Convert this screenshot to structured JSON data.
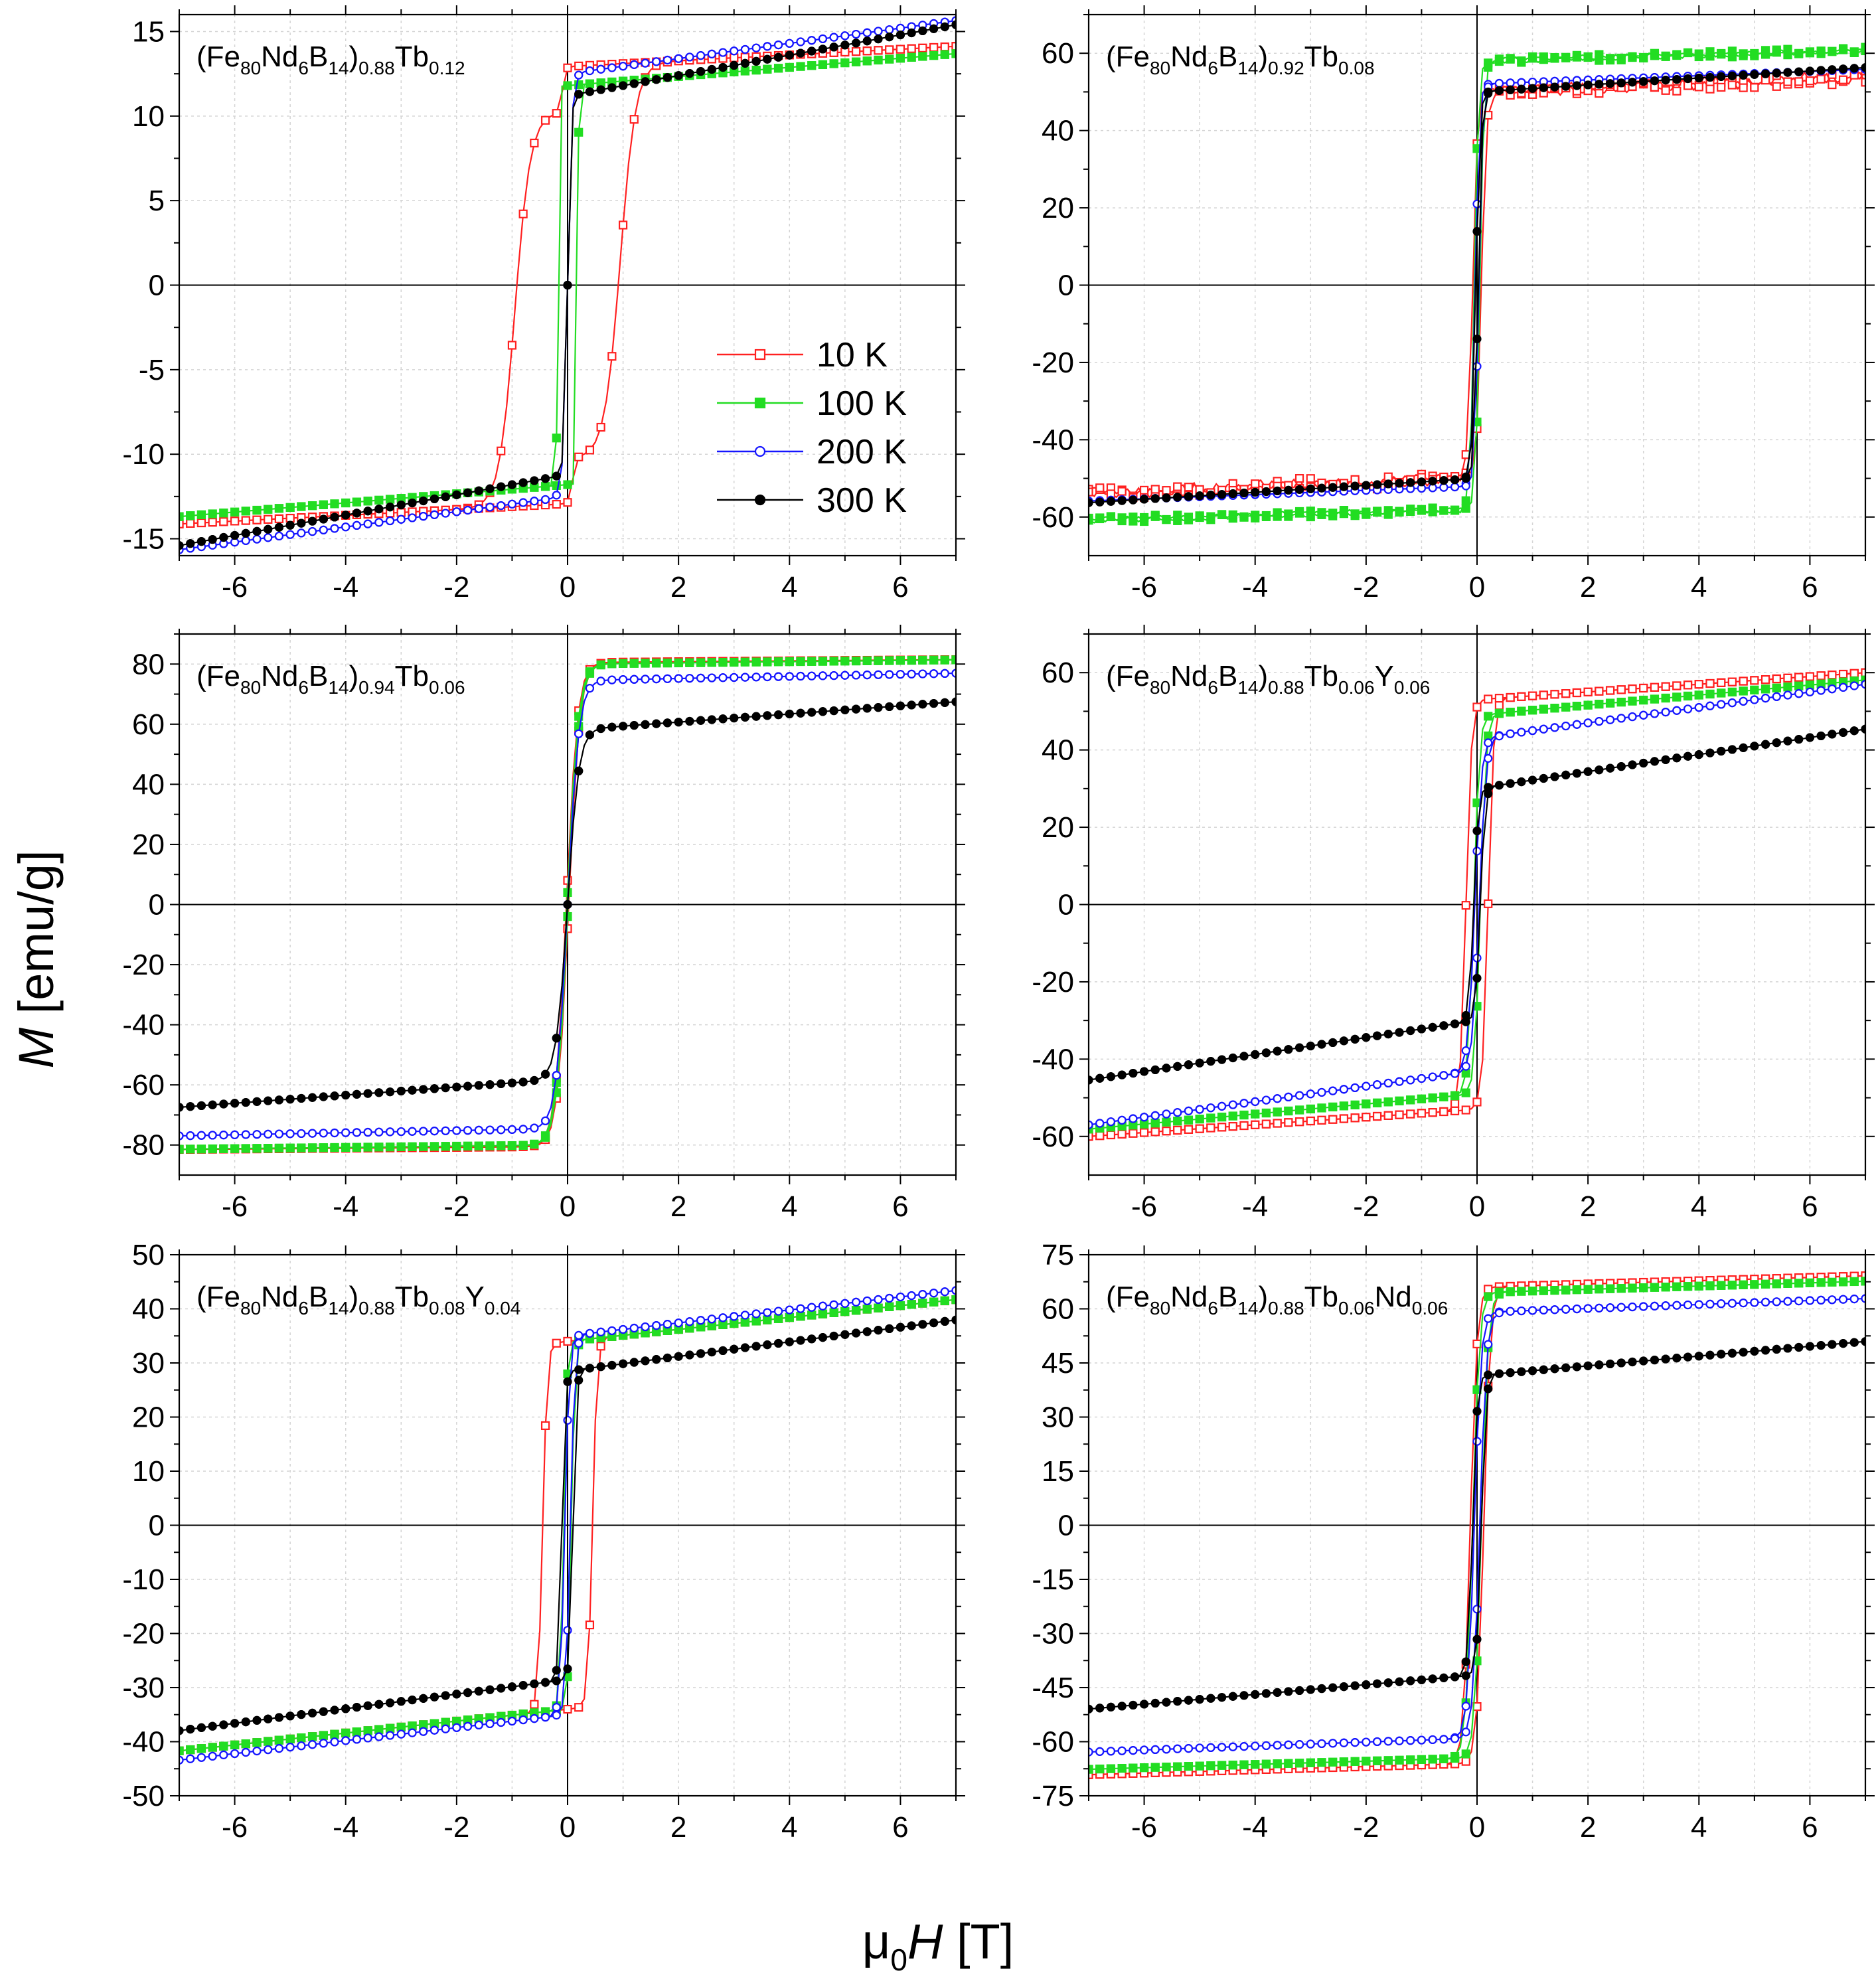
{
  "figure": {
    "ylabel_italic": "M",
    "ylabel_rest": " [emu/g]",
    "xlabel_mu": "μ",
    "xlabel_sub": "0",
    "xlabel_italic": "H",
    "xlabel_rest": " [T]",
    "x_ticks": [
      -6,
      -4,
      -2,
      0,
      2,
      4,
      6
    ]
  },
  "series_styles": [
    {
      "name": "10 K",
      "color": "#ff2020",
      "marker": "open-square"
    },
    {
      "name": "100 K",
      "color": "#22dd22",
      "marker": "filled-square"
    },
    {
      "name": "200 K",
      "color": "#1515ff",
      "marker": "open-circle"
    },
    {
      "name": "300 K",
      "color": "#000000",
      "marker": "filled-circle"
    }
  ],
  "chart_data": [
    {
      "type": "line",
      "title": "(Fe80Nd6B14)0.88Tb0.12",
      "title_parts": [
        [
          "(Fe",
          ""
        ],
        [
          "80",
          "sub"
        ],
        [
          "Nd",
          ""
        ],
        [
          "6",
          "sub"
        ],
        [
          "B",
          ""
        ],
        [
          "14",
          "sub"
        ],
        [
          ")",
          ""
        ],
        [
          "0.88",
          "sub"
        ],
        [
          "Tb",
          ""
        ],
        [
          "0.12",
          "sub"
        ]
      ],
      "xlim": [
        -7,
        7
      ],
      "ylim": [
        -16,
        16
      ],
      "yticks": [
        -15,
        -10,
        -5,
        0,
        5,
        10,
        15
      ],
      "legend": "center-right",
      "series": [
        {
          "name": "10 K",
          "Ms": 11.6,
          "chi": 0.17,
          "Hc": 0.95,
          "w": 0.28,
          "step": 0.23
        },
        {
          "name": "100 K",
          "Ms": 11.8,
          "chi": 0.27,
          "Hc": 0.18,
          "w": 0.02
        },
        {
          "name": "200 K",
          "Ms": 12.5,
          "chi": 0.45,
          "Hc": 0.0,
          "w": 0.08
        },
        {
          "name": "300 K",
          "Ms": 11.2,
          "chi": 0.6,
          "Hc": 0.0,
          "w": 0.06
        }
      ]
    },
    {
      "type": "line",
      "title": "(Fe80Nd6B14)0.92Tb0.08",
      "title_parts": [
        [
          "(Fe",
          ""
        ],
        [
          "80",
          "sub"
        ],
        [
          "Nd",
          ""
        ],
        [
          "6",
          "sub"
        ],
        [
          "B",
          ""
        ],
        [
          "14",
          "sub"
        ],
        [
          ")",
          ""
        ],
        [
          "0.92",
          "sub"
        ],
        [
          "Tb",
          ""
        ],
        [
          "0.08",
          "sub"
        ]
      ],
      "xlim": [
        -7,
        7
      ],
      "ylim": [
        -70,
        70
      ],
      "yticks": [
        -60,
        -40,
        -20,
        0,
        20,
        40,
        60
      ],
      "series": [
        {
          "name": "10 K",
          "Ms": 50,
          "chi": 0.55,
          "Hc": 0.08,
          "w": 0.08,
          "noise": 1.8
        },
        {
          "name": "100 K",
          "Ms": 58,
          "chi": 0.4,
          "Hc": 0.05,
          "w": 0.07,
          "noise": 0.8
        },
        {
          "name": "200 K",
          "Ms": 52,
          "chi": 0.55,
          "Hc": 0.03,
          "w": 0.07
        },
        {
          "name": "300 K",
          "Ms": 50,
          "chi": 0.9,
          "Hc": 0.02,
          "w": 0.07
        }
      ]
    },
    {
      "type": "line",
      "title": "(Fe80Nd6B14)0.94Tb0.06",
      "title_parts": [
        [
          "(Fe",
          ""
        ],
        [
          "80",
          "sub"
        ],
        [
          "Nd",
          ""
        ],
        [
          "6",
          "sub"
        ],
        [
          "B",
          ""
        ],
        [
          "14",
          "sub"
        ],
        [
          ")",
          ""
        ],
        [
          "0.94",
          "sub"
        ],
        [
          "Tb",
          ""
        ],
        [
          "0.06",
          "sub"
        ]
      ],
      "xlim": [
        -7,
        7
      ],
      "ylim": [
        -90,
        90
      ],
      "yticks": [
        -80,
        -60,
        -40,
        -20,
        0,
        20,
        40,
        60,
        80
      ],
      "series": [
        {
          "name": "10 K",
          "Ms": 80.5,
          "chi": 0.14,
          "Hc": 0.02,
          "w": 0.2
        },
        {
          "name": "100 K",
          "Ms": 80,
          "chi": 0.2,
          "Hc": 0.01,
          "w": 0.2
        },
        {
          "name": "200 K",
          "Ms": 74.5,
          "chi": 0.35,
          "Hc": 0.0,
          "w": 0.2
        },
        {
          "name": "300 K",
          "Ms": 58,
          "chi": 1.35,
          "Hc": 0.0,
          "w": 0.2
        }
      ]
    },
    {
      "type": "line",
      "title": "(Fe80Nd6B14)0.88Tb0.06Y0.06",
      "title_parts": [
        [
          "(Fe",
          ""
        ],
        [
          "80",
          "sub"
        ],
        [
          "Nd",
          ""
        ],
        [
          "6",
          "sub"
        ],
        [
          "B",
          ""
        ],
        [
          "14",
          "sub"
        ],
        [
          ")",
          ""
        ],
        [
          "0.88",
          "sub"
        ],
        [
          "Tb",
          ""
        ],
        [
          "0.06",
          "sub"
        ],
        [
          "Y",
          ""
        ],
        [
          "0.06",
          "sub"
        ]
      ],
      "xlim": [
        -7,
        7
      ],
      "ylim": [
        -70,
        70
      ],
      "yticks": [
        -60,
        -40,
        -20,
        0,
        20,
        40,
        60
      ],
      "series": [
        {
          "name": "10 K",
          "Ms": 53,
          "chi": 1.0,
          "Hc": 0.2,
          "w": 0.1
        },
        {
          "name": "100 K",
          "Ms": 49,
          "chi": 1.3,
          "Hc": 0.06,
          "w": 0.1
        },
        {
          "name": "200 K",
          "Ms": 43,
          "chi": 2.0,
          "Hc": 0.04,
          "w": 0.12
        },
        {
          "name": "300 K",
          "Ms": 30,
          "chi": 2.2,
          "Hc": 0.06,
          "w": 0.08
        }
      ]
    },
    {
      "type": "line",
      "title": "(Fe80Nd6B14)0.88Tb0.08Y0.04",
      "title_parts": [
        [
          "(Fe",
          ""
        ],
        [
          "80",
          "sub"
        ],
        [
          "Nd",
          ""
        ],
        [
          "6",
          "sub"
        ],
        [
          "B",
          ""
        ],
        [
          "14",
          "sub"
        ],
        [
          ")",
          ""
        ],
        [
          "0.88",
          "sub"
        ],
        [
          "Tb",
          ""
        ],
        [
          "0.08",
          "sub"
        ],
        [
          "Y",
          ""
        ],
        [
          "0.04",
          "sub"
        ]
      ],
      "xlim": [
        -7,
        7
      ],
      "ylim": [
        -50,
        50
      ],
      "yticks": [
        -50,
        -40,
        -30,
        -20,
        -10,
        0,
        10,
        20,
        30,
        40,
        50
      ],
      "series": [
        {
          "name": "10 K",
          "Ms": 34,
          "chi": 1.1,
          "Hc": 0.45,
          "w": 0.08
        },
        {
          "name": "100 K",
          "Ms": 34,
          "chi": 1.1,
          "Hc": 0.07,
          "w": 0.06
        },
        {
          "name": "200 K",
          "Ms": 35,
          "chi": 1.2,
          "Hc": 0.05,
          "w": 0.08
        },
        {
          "name": "300 K",
          "Ms": 28.5,
          "chi": 1.35,
          "Hc": 0.1,
          "w": 0.06
        }
      ]
    },
    {
      "type": "line",
      "title": "(Fe80Nd6B14)0.88Tb0.06Nd0.06",
      "title_parts": [
        [
          "(Fe",
          ""
        ],
        [
          "80",
          "sub"
        ],
        [
          "Nd",
          ""
        ],
        [
          "6",
          "sub"
        ],
        [
          "B",
          ""
        ],
        [
          "14",
          "sub"
        ],
        [
          ")",
          ""
        ],
        [
          "0.88",
          "sub"
        ],
        [
          "Tb",
          ""
        ],
        [
          "0.06",
          "sub"
        ],
        [
          "Nd",
          ""
        ],
        [
          "0.06",
          "sub"
        ]
      ],
      "xlim": [
        -7,
        7
      ],
      "ylim": [
        -75,
        75
      ],
      "yticks": [
        -75,
        -60,
        -45,
        -30,
        -15,
        0,
        15,
        30,
        45,
        60,
        75
      ],
      "series": [
        {
          "name": "10 K",
          "Ms": 66,
          "chi": 0.45,
          "Hc": 0.12,
          "w": 0.12
        },
        {
          "name": "100 K",
          "Ms": 64.5,
          "chi": 0.45,
          "Hc": 0.08,
          "w": 0.12
        },
        {
          "name": "200 K",
          "Ms": 59,
          "chi": 0.55,
          "Hc": 0.05,
          "w": 0.12
        },
        {
          "name": "300 K",
          "Ms": 41.5,
          "chi": 1.35,
          "Hc": 0.08,
          "w": 0.08
        }
      ]
    }
  ]
}
